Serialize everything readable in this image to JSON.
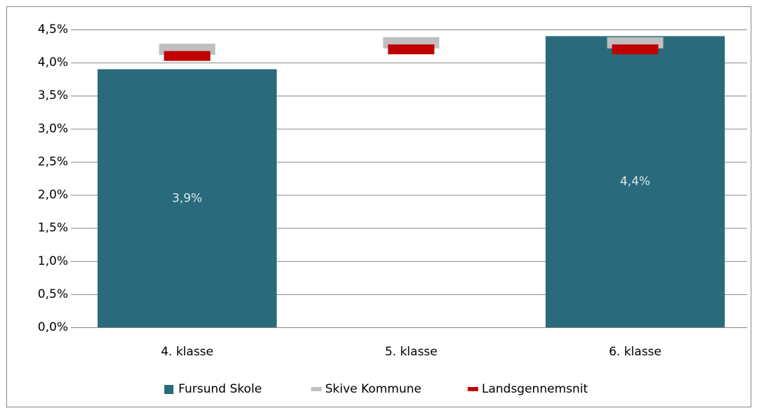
{
  "chart_data": {
    "type": "bar",
    "categories": [
      "4. klasse",
      "5. klasse",
      "6. klasse"
    ],
    "series": [
      {
        "name": "Fursund Skole",
        "color": "#296b7c",
        "kind": "bar",
        "values": [
          3.9,
          null,
          4.4
        ],
        "value_labels": [
          "3,9%",
          null,
          "4,4%"
        ]
      },
      {
        "name": "Skive Kommune",
        "color": "#bfbfbf",
        "kind": "marker",
        "values": [
          4.2,
          4.3,
          4.3
        ]
      },
      {
        "name": "Landsgennemsnit",
        "color": "#c00000",
        "kind": "marker",
        "values": [
          4.1,
          4.2,
          4.2
        ]
      }
    ],
    "ylim": [
      0,
      4.5
    ],
    "yticks": [
      {
        "value": 0,
        "label": "0,0%"
      },
      {
        "value": 0.5,
        "label": "0,5%"
      },
      {
        "value": 1,
        "label": "1,0%"
      },
      {
        "value": 1.5,
        "label": "1,5%"
      },
      {
        "value": 2,
        "label": "2,0%"
      },
      {
        "value": 2.5,
        "label": "2,5%"
      },
      {
        "value": 3,
        "label": "3,0%"
      },
      {
        "value": 3.5,
        "label": "3,5%"
      },
      {
        "value": 4,
        "label": "4,0%"
      },
      {
        "value": 4.5,
        "label": "4,5%"
      }
    ],
    "grid": true
  }
}
